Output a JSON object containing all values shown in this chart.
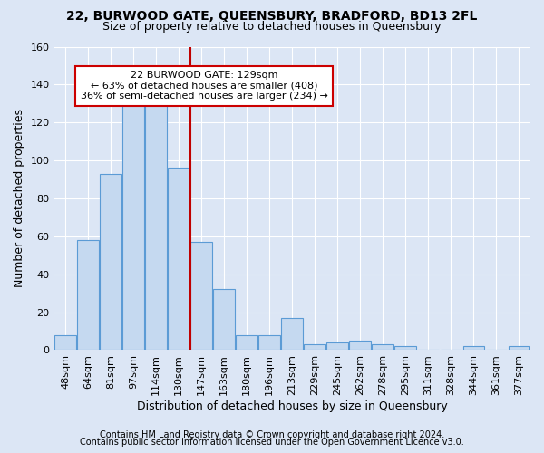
{
  "title_line1": "22, BURWOOD GATE, QUEENSBURY, BRADFORD, BD13 2FL",
  "title_line2": "Size of property relative to detached houses in Queensbury",
  "xlabel": "Distribution of detached houses by size in Queensbury",
  "ylabel": "Number of detached properties",
  "footnote1": "Contains HM Land Registry data © Crown copyright and database right 2024.",
  "footnote2": "Contains public sector information licensed under the Open Government Licence v3.0.",
  "annotation_line1": "22 BURWOOD GATE: 129sqm",
  "annotation_line2": "← 63% of detached houses are smaller (408)",
  "annotation_line3": "36% of semi-detached houses are larger (234) →",
  "bar_labels": [
    "48sqm",
    "64sqm",
    "81sqm",
    "97sqm",
    "114sqm",
    "130sqm",
    "147sqm",
    "163sqm",
    "180sqm",
    "196sqm",
    "213sqm",
    "229sqm",
    "245sqm",
    "262sqm",
    "278sqm",
    "295sqm",
    "311sqm",
    "328sqm",
    "344sqm",
    "361sqm",
    "377sqm"
  ],
  "bar_values": [
    8,
    58,
    93,
    130,
    131,
    96,
    57,
    32,
    8,
    8,
    17,
    3,
    4,
    5,
    3,
    2,
    0,
    0,
    2,
    0,
    2
  ],
  "bar_color": "#c5d9f0",
  "bar_edge_color": "#5b9bd5",
  "vline_color": "#c00000",
  "vline_x": 5.5,
  "ylim": [
    0,
    160
  ],
  "yticks": [
    0,
    20,
    40,
    60,
    80,
    100,
    120,
    140,
    160
  ],
  "bg_color": "#dce6f5",
  "plot_bg_color": "#dce6f5",
  "grid_color": "#ffffff",
  "annotation_box_color": "#ffffff",
  "annotation_box_edge": "#cc0000",
  "title1_fontsize": 10,
  "title2_fontsize": 9,
  "xlabel_fontsize": 9,
  "ylabel_fontsize": 9,
  "tick_fontsize": 8,
  "footnote_fontsize": 7
}
